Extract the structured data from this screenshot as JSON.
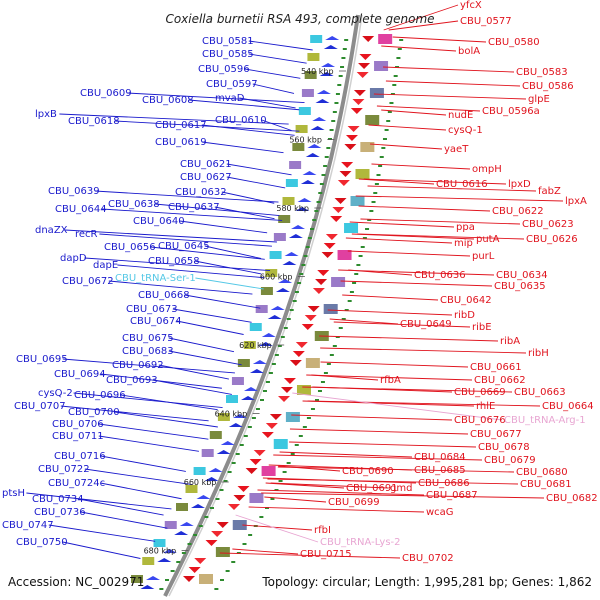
{
  "title": "Coxiella burnetii RSA 493, complete genome",
  "footer": {
    "accession": "Accession: NC_002971",
    "summary": "Topology: circular; Length: 1,995,281 bp; Genes: 1,862"
  },
  "colors": {
    "forward_label": "#1a1acc",
    "reverse_label": "#e0141e",
    "trna_forward": "#55c8e6",
    "trna_reverse": "#e8a6d2",
    "backbone": "#8c8c8c",
    "tick_mark": "#2e8b2e"
  },
  "position_ticks": [
    "540 kbp",
    "560 kbp",
    "580 kbp",
    "600 kbp",
    "620 kbp",
    "640 kbp",
    "660 kbp",
    "680 kbp"
  ],
  "forward_genes": [
    "CBU_0581",
    "CBU_0585",
    "CBU_0596",
    "CBU_0597",
    "CBU_0609",
    "CBU_0608",
    "mvaD",
    "lpxB",
    "CBU_0618",
    "CBU_0617",
    "CBU_0610",
    "CBU_0619",
    "CBU_0621",
    "CBU_0627",
    "CBU_0639",
    "CBU_0632",
    "CBU_0644",
    "CBU_0638",
    "CBU_0637",
    "CBU_0640",
    "dnaZX",
    "recR",
    "CBU_0656",
    "CBU_0645",
    "dapD",
    "dapE",
    "CBU_0658",
    "CBU_0672",
    "CBU_0668",
    "CBU_0673",
    "CBU_0674",
    "CBU_0675",
    "CBU_0683",
    "CBU_0695",
    "CBU_0692",
    "CBU_0694",
    "CBU_0693",
    "cysQ-2",
    "CBU_0696",
    "CBU_0707",
    "CBU_0700",
    "CBU_0706",
    "CBU_0711",
    "CBU_0716",
    "CBU_0722",
    "CBU_0724c",
    "ptsH",
    "CBU_0734",
    "CBU_0736",
    "CBU_0747",
    "CBU_0750"
  ],
  "forward_trna": [
    "CBU_tRNA-Ser-1"
  ],
  "reverse_genes": [
    "yfcX",
    "CBU_0577",
    "CBU_0580",
    "bolA",
    "CBU_0583",
    "CBU_0586",
    "glpE",
    "CBU_0596a",
    "nudE",
    "cysQ-1",
    "yaeT",
    "ompH",
    "CBU_0616",
    "lpxD",
    "fabZ",
    "lpxA",
    "CBU_0622",
    "CBU_0623",
    "ppa",
    "putA",
    "CBU_0626",
    "mip",
    "purL",
    "CBU_0636",
    "CBU_0634",
    "CBU_0635",
    "CBU_0642",
    "ribD",
    "CBU_0649",
    "ribE",
    "ribA",
    "ribH",
    "CBU_0661",
    "CBU_0662",
    "rfbA",
    "CBU_0669",
    "CBU_0663",
    "rhlE",
    "CBU_0664",
    "CBU_0676",
    "CBU_0677",
    "CBU_0678",
    "CBU_0679",
    "CBU_0684",
    "CBU_0680",
    "CBU_0685",
    "CBU_0681",
    "CBU_0690",
    "CBU_0686",
    "CBU_0691",
    "gmd",
    "CBU_0687",
    "CBU_0682",
    "CBU_0699",
    "wcaG",
    "rfbI",
    "CBU_0715",
    "CBU_0702"
  ],
  "reverse_trna": [
    "CBU_tRNA-Arg-1",
    "CBU_tRNA-Lys-2"
  ]
}
